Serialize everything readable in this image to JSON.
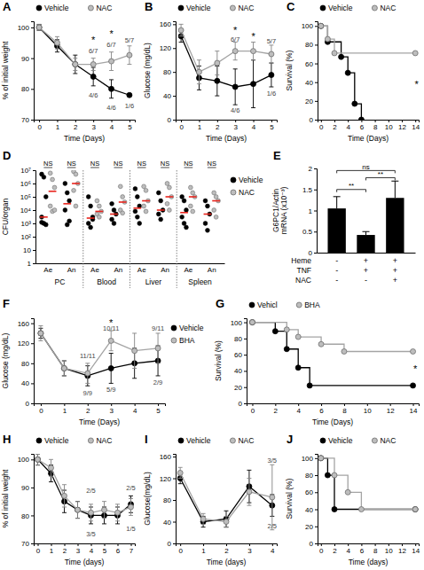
{
  "chart_data": [
    {
      "type": "line",
      "title": "A",
      "x_label": "Time (Days)",
      "y_label": "% of initial weight",
      "x": [
        0,
        1,
        2,
        3,
        4,
        5
      ],
      "xlim": [
        -0.3,
        5.3
      ],
      "xticks": [
        0,
        1,
        2,
        3,
        4,
        5
      ],
      "ylim": [
        70,
        102
      ],
      "yticks": [
        70,
        80,
        90,
        100
      ],
      "legend": "top",
      "series": [
        {
          "name": "Vehicle",
          "color": "#000000",
          "values": [
            100,
            94,
            88,
            84,
            80,
            78
          ],
          "errors": [
            1,
            2,
            3,
            3,
            3,
            0
          ]
        },
        {
          "name": "NAC",
          "color": "#bdbdbd",
          "values": [
            100,
            95,
            88,
            88,
            89,
            91
          ],
          "errors": [
            1,
            2,
            2,
            2,
            3,
            3
          ]
        }
      ],
      "annotations": [
        {
          "text": "*",
          "x": 3,
          "y": 96
        },
        {
          "text": "6/7",
          "x": 3,
          "y": 92.5
        },
        {
          "text": "*",
          "x": 4,
          "y": 98
        },
        {
          "text": "6/7",
          "x": 4,
          "y": 94.5
        },
        {
          "text": "5/7",
          "x": 5,
          "y": 96
        },
        {
          "text": "4/6",
          "x": 3,
          "y": 78
        },
        {
          "text": "4/6",
          "x": 4,
          "y": 74
        },
        {
          "text": "1/6",
          "x": 5,
          "y": 74.5
        }
      ]
    },
    {
      "type": "line",
      "title": "B",
      "x_label": "Time (Days)",
      "y_label": "Glucose (mg/dL)",
      "x": [
        0,
        1,
        2,
        3,
        4,
        5
      ],
      "xlim": [
        -0.3,
        5.3
      ],
      "xticks": [
        0,
        1,
        2,
        3,
        4,
        5
      ],
      "ylim": [
        0,
        165
      ],
      "yticks": [
        0,
        40,
        80,
        120,
        160
      ],
      "legend": "top",
      "series": [
        {
          "name": "Vehicle",
          "color": "#000000",
          "values": [
            140,
            70,
            65,
            55,
            60,
            75
          ],
          "errors": [
            10,
            20,
            25,
            30,
            40,
            20
          ]
        },
        {
          "name": "NAC",
          "color": "#bdbdbd",
          "values": [
            150,
            80,
            95,
            115,
            115,
            110
          ],
          "errors": [
            10,
            20,
            20,
            15,
            15,
            15
          ]
        }
      ],
      "annotations": [
        {
          "text": "*",
          "x": 3,
          "y": 150
        },
        {
          "text": "6/7",
          "x": 3,
          "y": 136
        },
        {
          "text": "*",
          "x": 4,
          "y": 140
        },
        {
          "text": "5/7",
          "x": 5,
          "y": 132
        },
        {
          "text": "4/6",
          "x": 3,
          "y": 16
        },
        {
          "text": "1/6",
          "x": 5,
          "y": 44
        }
      ]
    },
    {
      "type": "step",
      "title": "C",
      "x_label": "Time (Days)",
      "y_label": "Survival (%)",
      "xlim": [
        -0.5,
        14.5
      ],
      "xticks": [
        0,
        2,
        4,
        6,
        8,
        10,
        12,
        14
      ],
      "ylim": [
        0,
        105
      ],
      "yticks": [
        0,
        20,
        40,
        60,
        80,
        100
      ],
      "legend": "top",
      "series": [
        {
          "name": "Vehicle",
          "color": "#000000",
          "x": [
            0,
            1,
            3,
            4,
            5,
            6
          ],
          "values": [
            100,
            83,
            67,
            50,
            17,
            0
          ]
        },
        {
          "name": "NAC",
          "color": "#bdbdbd",
          "x": [
            0,
            1,
            2,
            14
          ],
          "values": [
            100,
            86,
            71,
            71
          ]
        }
      ],
      "annotations": [
        {
          "text": "*",
          "x": 14.2,
          "y": 38
        }
      ]
    },
    {
      "type": "scatter",
      "title": "D",
      "y_label": "CFU/organ",
      "log": "y",
      "categories": [
        "Ae",
        "An",
        "Ae",
        "An",
        "Ae",
        "An",
        "Ae",
        "An"
      ],
      "groups": [
        "PC",
        "Blood",
        "Liver",
        "Spleen"
      ],
      "ylim": [
        1,
        10000000
      ],
      "yticks": [
        1,
        10,
        {
          "value": 100,
          "label": "10²"
        },
        {
          "value": 1000,
          "label": "10³"
        },
        {
          "value": 10000,
          "label": "10⁴"
        },
        {
          "value": 100000,
          "label": "10⁵"
        },
        {
          "value": 1000000,
          "label": "10⁶"
        },
        {
          "value": 10000000,
          "label": "10⁷"
        }
      ],
      "legend": "right",
      "series": [
        {
          "name": "Vehicle",
          "color": "#000000",
          "values": [
            [
              5000000,
              3000000,
              100000,
              3000,
              1000,
              800,
              1200
            ],
            [
              1000000,
              200000,
              50000,
              10000,
              800,
              1500
            ],
            [
              100000,
              20000,
              3000,
              1000,
              500,
              2000
            ],
            [
              30000,
              10000,
              5000,
              2000,
              1000
            ],
            [
              400000,
              100000,
              20000,
              8000,
              3000,
              1000
            ],
            [
              200000,
              50000,
              10000,
              5000,
              2000
            ],
            [
              100000,
              50000,
              10000,
              3000,
              1000,
              500
            ],
            [
              50000,
              20000,
              5000,
              1000,
              300
            ]
          ],
          "medians": [
            3000,
            30000,
            2500,
            5000,
            14000,
            10000,
            6500,
            5000
          ]
        },
        {
          "name": "NAC",
          "color": "#bdbdbd",
          "values": [
            [
              6000000,
              2000000,
              500000,
              20000,
              8000,
              10000
            ],
            [
              8000000,
              5000000,
              1000000,
              300000,
              20000
            ],
            [
              50000,
              20000,
              8000,
              5000,
              3000
            ],
            [
              600000,
              100000,
              40000,
              10000,
              6000
            ],
            [
              600000,
              300000,
              50000,
              20000,
              8000
            ],
            [
              1000000,
              500000,
              100000,
              30000,
              10000
            ],
            [
              500000,
              200000,
              100000,
              20000,
              8000
            ],
            [
              200000,
              100000,
              50000,
              10000,
              3000
            ]
          ],
          "medians": [
            260000,
            1000000,
            8000,
            40000,
            50000,
            100000,
            100000,
            50000
          ]
        }
      ],
      "annotations": [
        {
          "text": "NS",
          "category": 0
        },
        {
          "text": "NS",
          "category": 1
        },
        {
          "text": "NS",
          "category": 2
        },
        {
          "text": "NS",
          "category": 3
        },
        {
          "text": "NS",
          "category": 4
        },
        {
          "text": "NS",
          "category": 5
        },
        {
          "text": "NS",
          "category": 6
        },
        {
          "text": "NS",
          "category": 7
        }
      ]
    },
    {
      "type": "bar",
      "title": "E",
      "y_label": [
        "G6PC1/Actin",
        "mRNA (x10⁻³)"
      ],
      "categories": [
        null,
        null,
        null
      ],
      "values": [
        1.05,
        0.42,
        1.3
      ],
      "errors": [
        0.28,
        0.08,
        0.4
      ],
      "color": "#000000",
      "ylim": [
        0,
        2
      ],
      "yticks": [
        0,
        0.5,
        1,
        1.5,
        2
      ],
      "treatments": [
        {
          "label": "Heme",
          "values": [
            "-",
            "+",
            "+"
          ]
        },
        {
          "label": "TNF",
          "values": [
            "-",
            "+",
            "+"
          ]
        },
        {
          "label": "NAC",
          "values": [
            "-",
            "-",
            "+"
          ]
        }
      ],
      "comparisons": [
        {
          "from": 0,
          "to": 1,
          "y": 1.5,
          "label": "**"
        },
        {
          "from": 1,
          "to": 2,
          "y": 1.78,
          "label": "**"
        },
        {
          "from": 0,
          "to": 2,
          "y": 1.95,
          "label": "ns"
        }
      ]
    },
    {
      "type": "line",
      "title": "F",
      "x_label": "Time (Days)",
      "y_label": "Glucose (mg/dL)",
      "x": [
        0,
        1,
        2,
        3,
        4,
        5
      ],
      "xlim": [
        -0.3,
        5.3
      ],
      "xticks": [
        0,
        1,
        2,
        3,
        4,
        5
      ],
      "ylim": [
        0,
        170
      ],
      "yticks": [
        0,
        40,
        80,
        120,
        160
      ],
      "legend": "right",
      "series": [
        {
          "name": "Vehicle",
          "color": "#000000",
          "values": [
            140,
            70,
            55,
            70,
            80,
            85
          ],
          "errors": [
            10,
            15,
            20,
            30,
            30,
            30
          ]
        },
        {
          "name": "BHA",
          "color": "#bdbdbd",
          "values": [
            140,
            70,
            60,
            125,
            105,
            110
          ],
          "errors": [
            15,
            15,
            20,
            20,
            35,
            30
          ]
        }
      ],
      "annotations": [
        {
          "text": "11/11",
          "x": 2,
          "y": 95
        },
        {
          "text": "9/9",
          "x": 2,
          "y": 22
        },
        {
          "text": "*",
          "x": 3,
          "y": 162
        },
        {
          "text": "10/11",
          "x": 3,
          "y": 151
        },
        {
          "text": "5/9",
          "x": 3,
          "y": 28
        },
        {
          "text": "9/11",
          "x": 5,
          "y": 150
        },
        {
          "text": "2/9",
          "x": 5,
          "y": 42
        }
      ]
    },
    {
      "type": "step",
      "title": "G",
      "x_label": "Time (Days)",
      "y_label": "Survival (%)",
      "xlim": [
        -0.5,
        14.5
      ],
      "xticks": [
        0,
        2,
        4,
        6,
        8,
        10,
        12,
        14
      ],
      "ylim": [
        0,
        105
      ],
      "yticks": [
        0,
        20,
        40,
        60,
        80,
        100
      ],
      "legend": "top",
      "series": [
        {
          "name": "Vehicl",
          "color": "#000000",
          "x": [
            0,
            2,
            3,
            4,
            5,
            14
          ],
          "values": [
            100,
            89,
            67,
            44,
            22,
            22
          ]
        },
        {
          "name": "BHA",
          "color": "#bdbdbd",
          "x": [
            0,
            3,
            4,
            6,
            8,
            14
          ],
          "values": [
            100,
            91,
            82,
            73,
            64,
            64
          ]
        }
      ],
      "annotations": [
        {
          "text": "*",
          "x": 14.2,
          "y": 43
        }
      ]
    },
    {
      "type": "line",
      "title": "H",
      "x_label": "Time (days)",
      "y_label": "% of initial weight",
      "x": [
        0,
        1,
        2,
        3,
        4,
        5,
        6,
        7
      ],
      "xlim": [
        -0.3,
        7.3
      ],
      "xticks": [
        0,
        1,
        2,
        3,
        4,
        5,
        6,
        7
      ],
      "ylim": [
        70,
        102
      ],
      "yticks": [
        70,
        80,
        90,
        100
      ],
      "legend": "top",
      "series": [
        {
          "name": "Vehicle",
          "color": "#000000",
          "values": [
            100,
            95,
            85,
            82,
            80,
            80,
            80,
            84
          ],
          "errors": [
            2,
            3,
            4,
            3,
            3,
            3,
            3,
            3
          ]
        },
        {
          "name": "NAC",
          "color": "#bdbdbd",
          "values": [
            100,
            97,
            87,
            82,
            81,
            82,
            81,
            83
          ],
          "errors": [
            2,
            3,
            4,
            3,
            3,
            3,
            3,
            3
          ]
        }
      ],
      "annotations": [
        {
          "text": "2/5",
          "x": 4,
          "y": 89
        },
        {
          "text": "3/5",
          "x": 4,
          "y": 73.5
        },
        {
          "text": "2/5",
          "x": 7,
          "y": 90
        },
        {
          "text": "1/5",
          "x": 7,
          "y": 75.5
        }
      ]
    },
    {
      "type": "line",
      "title": "I",
      "x_label": "Time (days)",
      "y_label": "Glucose(mg/dL)",
      "x": [
        0,
        1,
        2,
        3,
        4
      ],
      "xlim": [
        -0.2,
        4.2
      ],
      "xticks": [
        0,
        1,
        2,
        3,
        4
      ],
      "ylim": [
        0,
        165
      ],
      "yticks": [
        0,
        40,
        80,
        120,
        160
      ],
      "legend": "top",
      "series": [
        {
          "name": "Vehicle",
          "color": "#000000",
          "values": [
            120,
            40,
            45,
            105,
            70
          ],
          "errors": [
            10,
            10,
            15,
            30,
            20
          ]
        },
        {
          "name": "NAC",
          "color": "#bdbdbd",
          "values": [
            130,
            45,
            40,
            95,
            85
          ],
          "errors": [
            10,
            10,
            10,
            25,
            60
          ]
        }
      ],
      "annotations": [
        {
          "text": "3/5",
          "x": 4,
          "y": 153
        },
        {
          "text": "2/5",
          "x": 4,
          "y": 32
        }
      ]
    },
    {
      "type": "step",
      "title": "J",
      "x_label": "Time (days)",
      "y_label": "Survival (%)",
      "xlim": [
        -0.5,
        14.5
      ],
      "xticks": [
        0,
        2,
        4,
        6,
        8,
        10,
        12,
        14
      ],
      "ylim": [
        0,
        105
      ],
      "yticks": [
        0,
        20,
        40,
        60,
        80,
        100
      ],
      "legend": "top",
      "series": [
        {
          "name": "Vehicle",
          "color": "#000000",
          "x": [
            0,
            1,
            2,
            14
          ],
          "values": [
            100,
            80,
            40,
            40
          ]
        },
        {
          "name": "NAC",
          "color": "#bdbdbd",
          "x": [
            0,
            2,
            4,
            6,
            14
          ],
          "values": [
            100,
            80,
            60,
            40,
            40
          ]
        }
      ]
    }
  ]
}
